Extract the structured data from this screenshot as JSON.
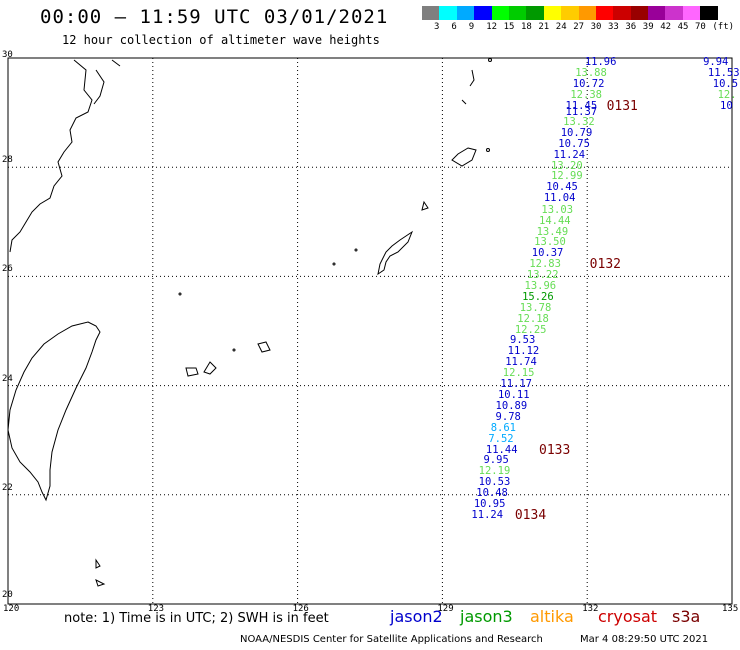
{
  "header": {
    "title": "00:00 – 11:59 UTC 03/01/2021",
    "subtitle": "12 hour collection of altimeter wave heights"
  },
  "colorbar": {
    "colors": [
      "#7f7f7f",
      "#00ffff",
      "#00aaff",
      "#0000ff",
      "#00ff00",
      "#00cc00",
      "#009900",
      "#ffff00",
      "#ffcc00",
      "#ff9900",
      "#ff0000",
      "#cc0000",
      "#990000",
      "#990099",
      "#cc33cc",
      "#ff66ff",
      "#000000"
    ],
    "labels": [
      "3",
      "6",
      "9",
      "12",
      "15",
      "18",
      "21",
      "24",
      "27",
      "30",
      "33",
      "36",
      "39",
      "42",
      "45",
      "70",
      "(ft)"
    ]
  },
  "chart_data": {
    "type": "scatter",
    "x_range": [
      120,
      135
    ],
    "y_range": [
      20,
      30
    ],
    "x_ticks": [
      "120",
      "123",
      "126",
      "129",
      "132",
      "135"
    ],
    "y_ticks": [
      "30",
      "28",
      "26",
      "24",
      "22",
      "20"
    ],
    "grid": true,
    "points": [
      {
        "lon": 132.2,
        "lat": 29.93,
        "v": "11.96",
        "c": "#0000cc"
      },
      {
        "lon": 132.0,
        "lat": 29.72,
        "v": "13.88",
        "c": "#66dd55"
      },
      {
        "lon": 131.95,
        "lat": 29.52,
        "v": "10.72",
        "c": "#0000cc"
      },
      {
        "lon": 131.9,
        "lat": 29.33,
        "v": "12.38",
        "c": "#66dd55"
      },
      {
        "lon": 131.8,
        "lat": 29.12,
        "v": "11.45",
        "c": "#0000cc"
      },
      {
        "lon": 131.8,
        "lat": 29.02,
        "v": "11.37",
        "c": "#0000cc"
      },
      {
        "lon": 131.75,
        "lat": 28.83,
        "v": "13.32",
        "c": "#66dd55"
      },
      {
        "lon": 131.7,
        "lat": 28.62,
        "v": "10.79",
        "c": "#0000cc"
      },
      {
        "lon": 131.65,
        "lat": 28.42,
        "v": "10.75",
        "c": "#0000cc"
      },
      {
        "lon": 131.55,
        "lat": 28.22,
        "v": "11.24",
        "c": "#0000cc"
      },
      {
        "lon": 131.5,
        "lat": 28.02,
        "v": "13.20",
        "c": "#66dd55"
      },
      {
        "lon": 131.5,
        "lat": 27.83,
        "v": "12.99",
        "c": "#66dd55"
      },
      {
        "lon": 131.4,
        "lat": 27.63,
        "v": "10.45",
        "c": "#0000cc"
      },
      {
        "lon": 131.35,
        "lat": 27.43,
        "v": "11.04",
        "c": "#0000cc"
      },
      {
        "lon": 131.3,
        "lat": 27.22,
        "v": "13.03",
        "c": "#66dd55"
      },
      {
        "lon": 131.25,
        "lat": 27.02,
        "v": "14.44",
        "c": "#66dd55"
      },
      {
        "lon": 131.2,
        "lat": 26.82,
        "v": "13.49",
        "c": "#66dd55"
      },
      {
        "lon": 131.15,
        "lat": 26.63,
        "v": "13.50",
        "c": "#66dd55"
      },
      {
        "lon": 131.1,
        "lat": 26.43,
        "v": "10.37",
        "c": "#0000cc"
      },
      {
        "lon": 131.05,
        "lat": 26.23,
        "v": "12.83",
        "c": "#66dd55"
      },
      {
        "lon": 131.0,
        "lat": 26.03,
        "v": "13.22",
        "c": "#66dd55"
      },
      {
        "lon": 130.95,
        "lat": 25.83,
        "v": "13.96",
        "c": "#66dd55"
      },
      {
        "lon": 130.9,
        "lat": 25.62,
        "v": "15.26",
        "c": "#009900"
      },
      {
        "lon": 130.85,
        "lat": 25.43,
        "v": "13.78",
        "c": "#66dd55"
      },
      {
        "lon": 130.8,
        "lat": 25.22,
        "v": "12.18",
        "c": "#66dd55"
      },
      {
        "lon": 130.75,
        "lat": 25.02,
        "v": "12.25",
        "c": "#66dd55"
      },
      {
        "lon": 130.65,
        "lat": 24.83,
        "v": "9.53",
        "c": "#0000cc"
      },
      {
        "lon": 130.6,
        "lat": 24.63,
        "v": "11.12",
        "c": "#0000cc"
      },
      {
        "lon": 130.55,
        "lat": 24.43,
        "v": "11.74",
        "c": "#0000cc"
      },
      {
        "lon": 130.5,
        "lat": 24.23,
        "v": "12.15",
        "c": "#66dd55"
      },
      {
        "lon": 130.45,
        "lat": 24.03,
        "v": "11.17",
        "c": "#0000cc"
      },
      {
        "lon": 130.4,
        "lat": 23.83,
        "v": "10.11",
        "c": "#0000cc"
      },
      {
        "lon": 130.35,
        "lat": 23.63,
        "v": "10.89",
        "c": "#0000cc"
      },
      {
        "lon": 130.35,
        "lat": 23.43,
        "v": "9.78",
        "c": "#0000cc"
      },
      {
        "lon": 130.25,
        "lat": 23.22,
        "v": "8.61",
        "c": "#00aaff"
      },
      {
        "lon": 130.2,
        "lat": 23.03,
        "v": "7.52",
        "c": "#00aaff"
      },
      {
        "lon": 130.15,
        "lat": 22.82,
        "v": "11.44",
        "c": "#0000cc"
      },
      {
        "lon": 130.1,
        "lat": 22.63,
        "v": "9.95",
        "c": "#0000cc"
      },
      {
        "lon": 130.0,
        "lat": 22.43,
        "v": "12.19",
        "c": "#66dd55"
      },
      {
        "lon": 130.0,
        "lat": 22.23,
        "v": "10.53",
        "c": "#0000cc"
      },
      {
        "lon": 129.95,
        "lat": 22.03,
        "v": "10.48",
        "c": "#0000cc"
      },
      {
        "lon": 129.9,
        "lat": 21.83,
        "v": "10.95",
        "c": "#0000cc"
      },
      {
        "lon": 129.85,
        "lat": 21.63,
        "v": "11.24",
        "c": "#0000cc"
      },
      {
        "lon": 134.65,
        "lat": 29.93,
        "v": "9.94",
        "c": "#0000cc"
      },
      {
        "lon": 134.75,
        "lat": 29.73,
        "v": "11.53",
        "c": "#0000cc"
      },
      {
        "lon": 134.85,
        "lat": 29.53,
        "v": "10.5",
        "c": "#0000cc"
      },
      {
        "lon": 134.95,
        "lat": 29.33,
        "v": "12.",
        "c": "#66dd55"
      },
      {
        "lon": 135.0,
        "lat": 29.13,
        "v": "10",
        "c": "#0000cc"
      }
    ],
    "passes": [
      {
        "lon": 132.65,
        "lat": 29.12,
        "label": "0131"
      },
      {
        "lon": 132.3,
        "lat": 26.23,
        "label": "0132"
      },
      {
        "lon": 131.25,
        "lat": 22.82,
        "label": "0133"
      },
      {
        "lon": 130.75,
        "lat": 21.63,
        "label": "0134"
      }
    ]
  },
  "footer": {
    "note": "note: 1) Time is in UTC; 2) SWH is in feet",
    "satellites": [
      {
        "name": "jason2",
        "color": "#0000cc"
      },
      {
        "name": "jason3",
        "color": "#009900"
      },
      {
        "name": "altika",
        "color": "#ff9900"
      },
      {
        "name": "cryosat",
        "color": "#cc0000"
      },
      {
        "name": "s3a",
        "color": "#7a0000"
      }
    ],
    "credit": "NOAA/NESDIS Center for Satellite Applications and Research",
    "timestamp": "Mar  4 08:29:50 UTC 2021"
  }
}
